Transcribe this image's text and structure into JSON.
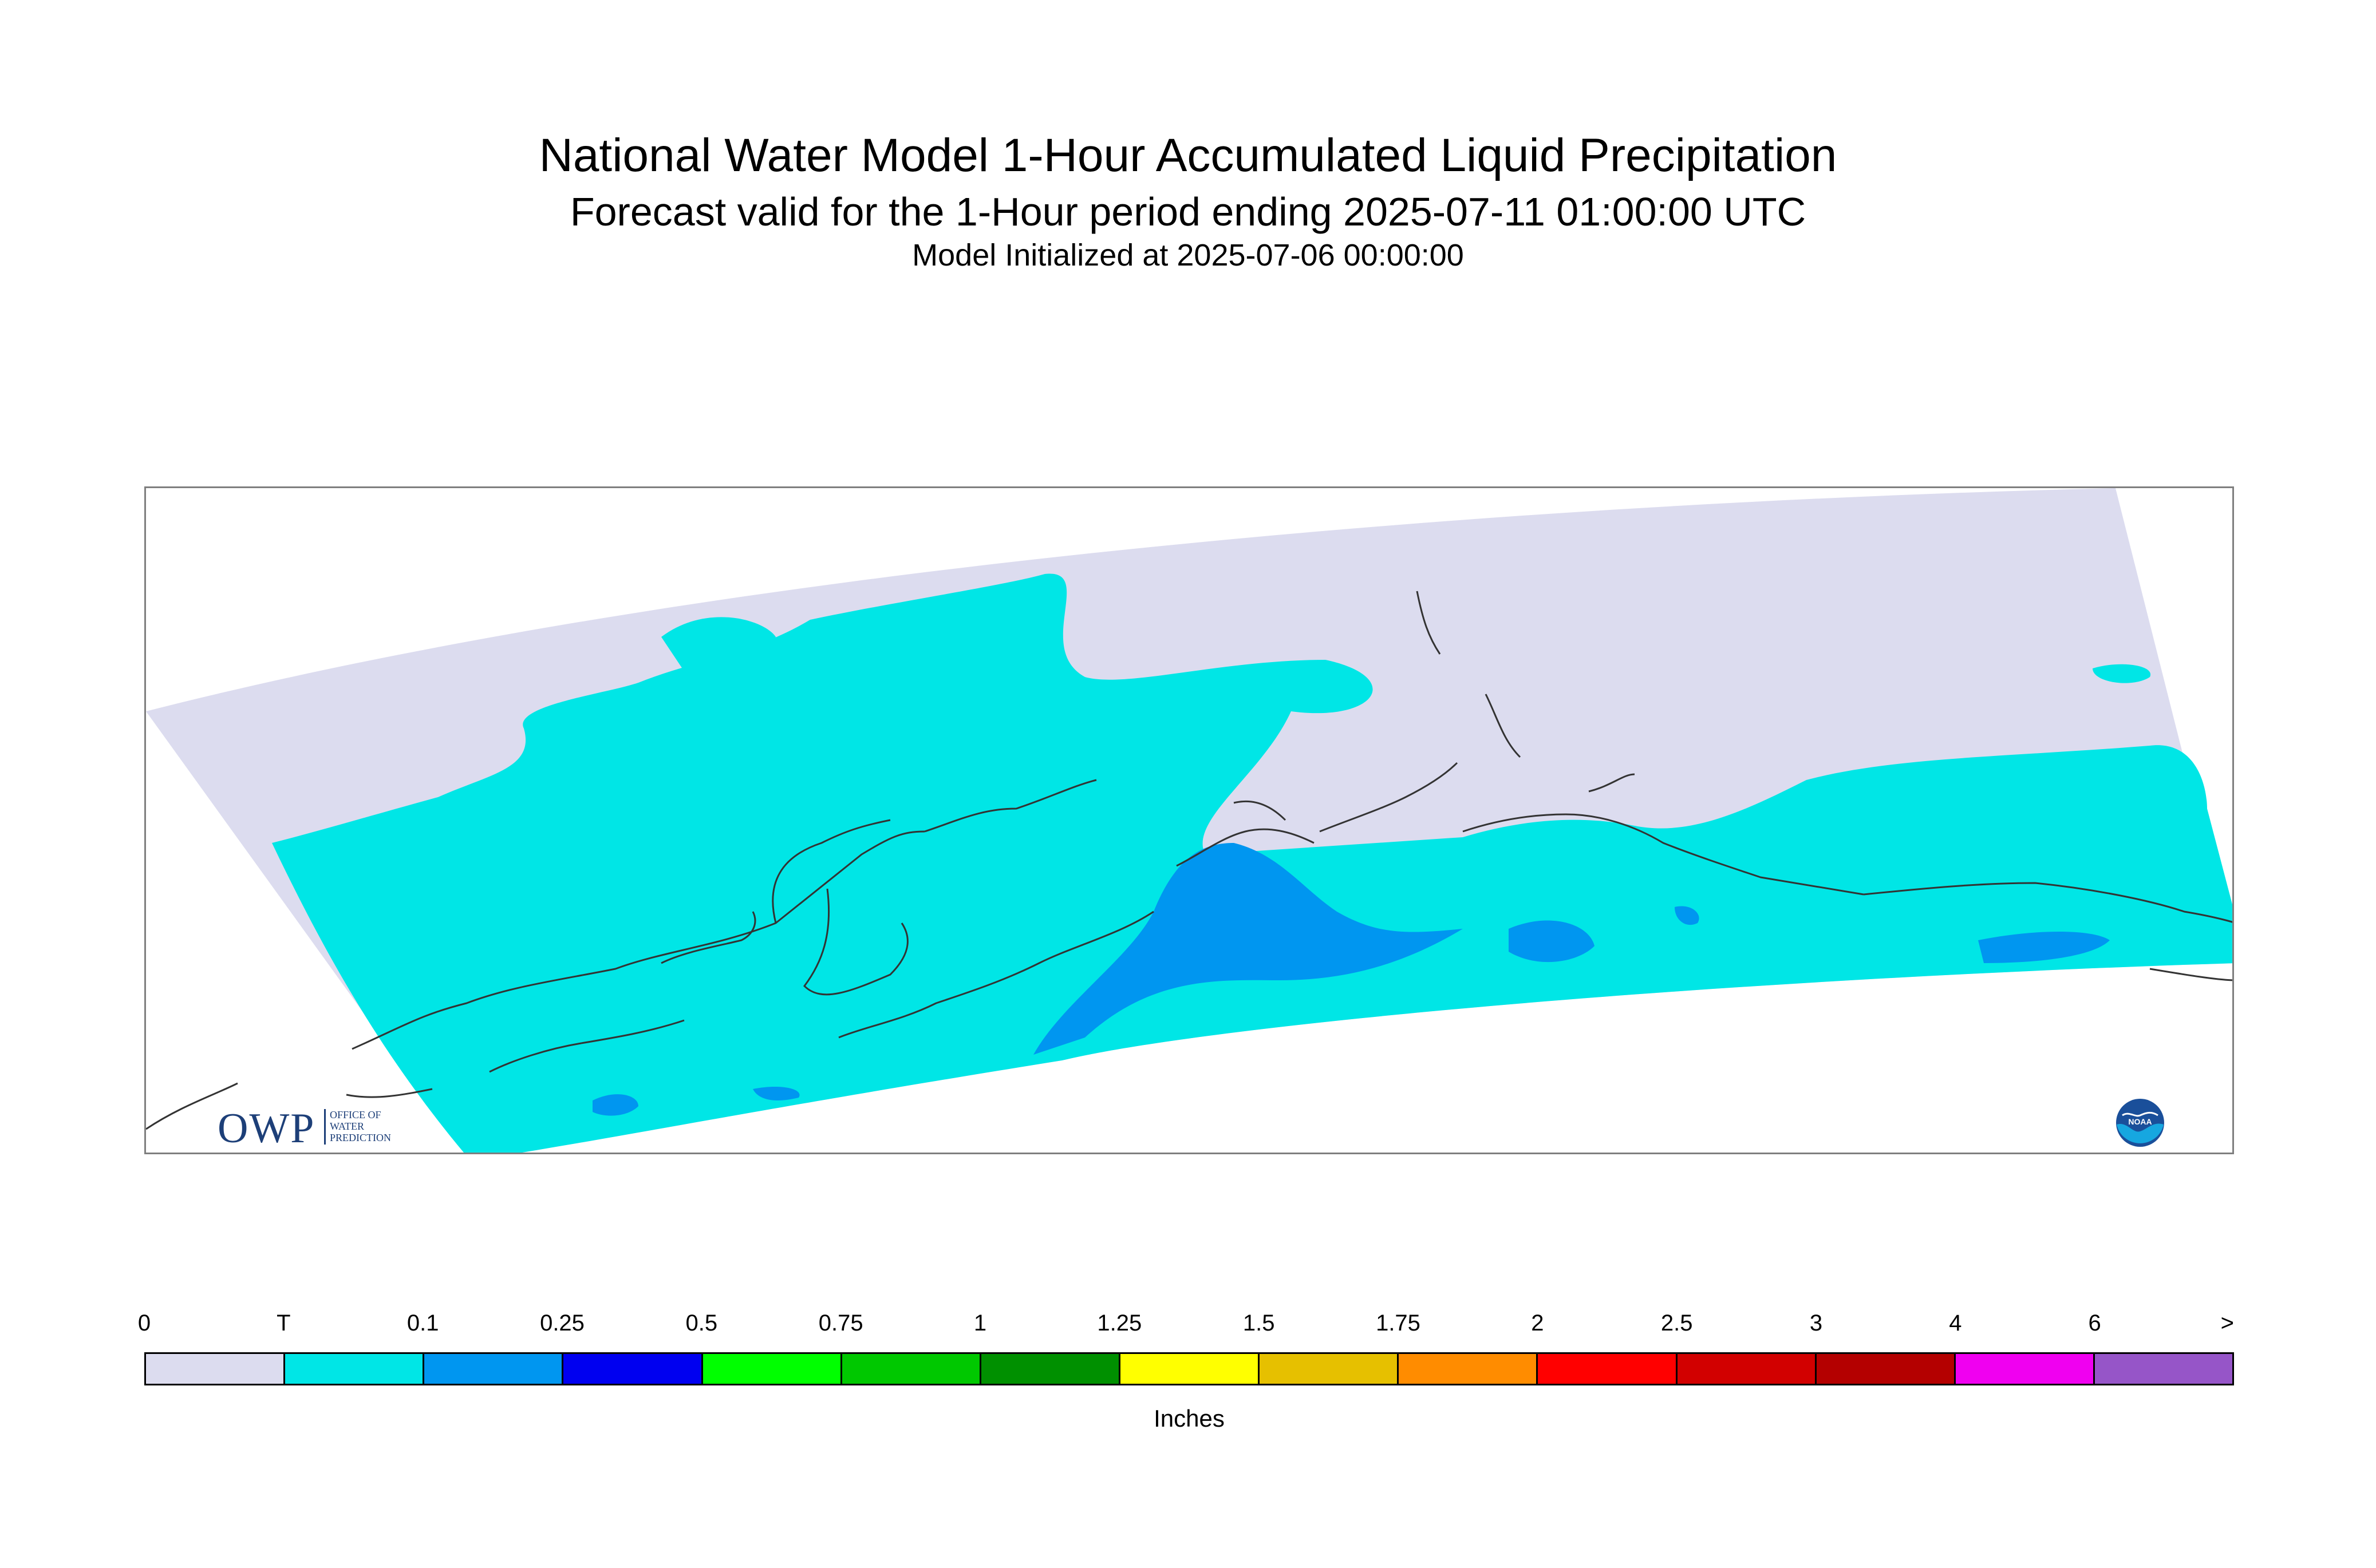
{
  "title": {
    "main": "National Water Model 1-Hour Accumulated Liquid Precipitation",
    "subtitle": "Forecast valid for the 1-Hour period ending 2025-07-11 01:00:00 UTC",
    "init": "Model Initialized at 2025-07-06 00:00:00"
  },
  "logos": {
    "owp_letters": "OWP",
    "owp_office": "OFFICE OF\nWATER\nPREDICTION",
    "noaa_text": "NOAA"
  },
  "legend": {
    "units": "Inches",
    "tick_labels": [
      "0",
      "T",
      "0.1",
      "0.25",
      "0.5",
      "0.75",
      "1",
      "1.25",
      "1.5",
      "1.75",
      "2",
      "2.5",
      "3",
      "4",
      "6",
      ">"
    ],
    "colors": [
      "#dcdcef",
      "#00e6e6",
      "#0096f0",
      "#0000f0",
      "#00ff00",
      "#00c800",
      "#009000",
      "#ffff00",
      "#e6c000",
      "#ff8c00",
      "#ff0000",
      "#d20000",
      "#b40000",
      "#f000f0",
      "#9655c8"
    ]
  },
  "map": {
    "projection_fill": "#dcdcef",
    "coastline_color": "#333333",
    "frame_color": "#7f7f7f",
    "categories_shown": [
      "0",
      "T",
      "0.1"
    ]
  }
}
